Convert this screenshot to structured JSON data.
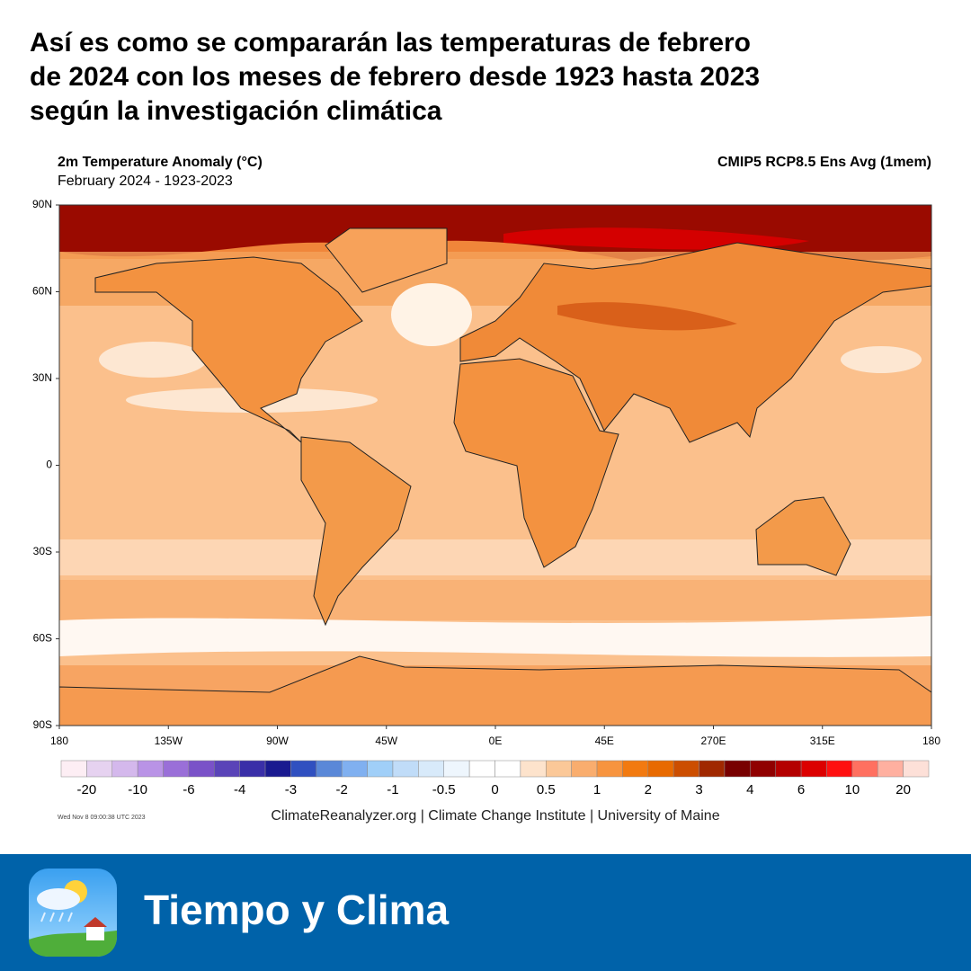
{
  "headline": [
    "Así es como se compararán las temperaturas de febrero",
    "de 2024 con los meses de febrero desde 1923 hasta 2023",
    "según la investigación climática"
  ],
  "map": {
    "title": "2m Temperature Anomaly (°C)",
    "subtitle": "February 2024 - 1923-2023",
    "source_label": "CMIP5 RCP8.5 Ens Avg (1mem)",
    "lat_labels": [
      "90N",
      "60N",
      "30N",
      "0",
      "30S",
      "60S",
      "90S"
    ],
    "lon_labels": [
      "180",
      "135W",
      "90W",
      "45W",
      "0E",
      "45E",
      "270E",
      "315E",
      "180"
    ]
  },
  "colorbar": {
    "colors": [
      "#fdeef4",
      "#e6d2f0",
      "#d4b8ec",
      "#b993e6",
      "#9a6fd8",
      "#7a52c8",
      "#5a44b8",
      "#3a2fa8",
      "#1a1a90",
      "#3050c0",
      "#5a88d8",
      "#80b0f0",
      "#a0cff8",
      "#c0dcf8",
      "#d8eafa",
      "#eef6fd",
      "#ffffff",
      "#ffffff",
      "#fde3cc",
      "#fbc898",
      "#f9ad6e",
      "#f7943f",
      "#f27a10",
      "#e86a00",
      "#cc4e00",
      "#a02800",
      "#780000",
      "#900000",
      "#b40000",
      "#dc0000",
      "#ff1010",
      "#ff7060",
      "#ffb0a0",
      "#fde0d8"
    ],
    "labels": [
      "-20",
      "-10",
      "-6",
      "-4",
      "-3",
      "-2",
      "-1",
      "-0.5",
      "0",
      "0.5",
      "1",
      "2",
      "3",
      "4",
      "6",
      "10",
      "20"
    ]
  },
  "timestamp": "Wed Nov 8 09:00:38 UTC 2023",
  "credit": "ClimateReanalyzer.org | Climate Change Institute | University of Maine",
  "footer": {
    "brand": "Tiempo y Clima"
  }
}
